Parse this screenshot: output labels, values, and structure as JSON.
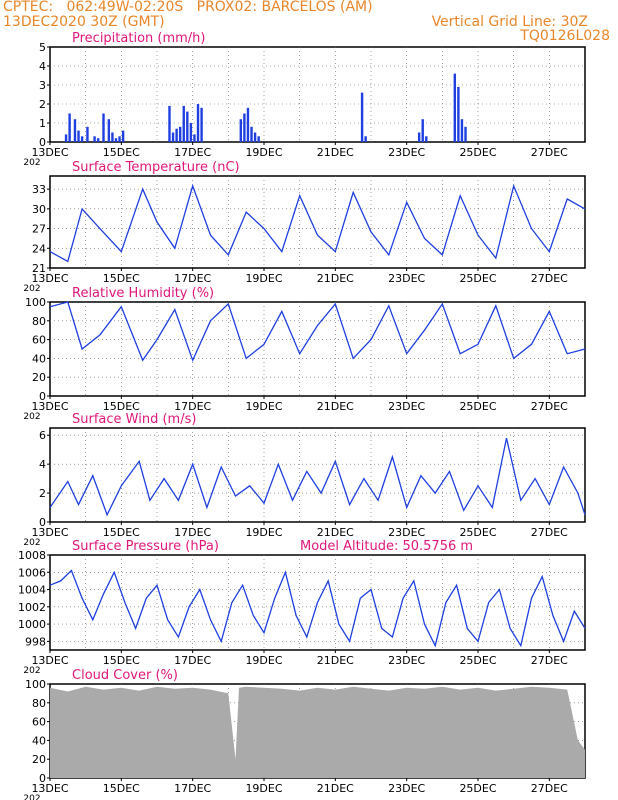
{
  "header": {
    "line1": "CPTEC:   062:49W-02:20S   PROX02: BARCELOS (AM)",
    "line2_left": "13DEC2020 30Z (GMT)",
    "line2_right": "Vertical Grid Line: 30Z",
    "line3_right": "TQ0126L028"
  },
  "colors": {
    "header": "#e8862a",
    "title": "#e0177a",
    "line": "#1f3fe0",
    "cloud": "#aaaaaa"
  },
  "x_axis": {
    "ticks": [
      "13DEC",
      "15DEC",
      "17DEC",
      "19DEC",
      "21DEC",
      "23DEC",
      "25DEC",
      "27DEC"
    ],
    "corner": "202"
  },
  "chart_data": [
    {
      "type": "bar",
      "title": "Precipitation (mm/h)",
      "ylim": [
        0,
        5
      ],
      "yticks": [
        0,
        1,
        2,
        3,
        4,
        5
      ],
      "x": [
        0.45,
        0.55,
        0.7,
        0.8,
        0.9,
        1.05,
        1.25,
        1.35,
        1.5,
        1.65,
        1.75,
        1.85,
        1.95,
        2.05,
        3.35,
        3.45,
        3.55,
        3.65,
        3.75,
        3.85,
        3.95,
        4.05,
        4.15,
        4.25,
        5.35,
        5.45,
        5.55,
        5.65,
        5.75,
        5.85,
        8.75,
        8.85,
        10.35,
        10.45,
        10.55,
        11.35,
        11.45,
        11.55,
        11.65
      ],
      "values": [
        0.4,
        1.5,
        1.2,
        0.6,
        0.3,
        0.8,
        0.3,
        0.2,
        1.5,
        1.2,
        0.5,
        0.2,
        0.3,
        0.6,
        1.9,
        0.5,
        0.7,
        0.8,
        1.9,
        1.6,
        1.0,
        0.4,
        2.0,
        1.8,
        1.2,
        1.5,
        1.8,
        0.8,
        0.5,
        0.3,
        2.6,
        0.3,
        0.5,
        1.2,
        0.3,
        3.6,
        2.9,
        1.2,
        0.8
      ]
    },
    {
      "type": "line",
      "title": "Surface Temperature (nC)",
      "ylim": [
        21,
        35
      ],
      "yticks": [
        21,
        24,
        27,
        30,
        33
      ],
      "x": [
        0,
        0.5,
        0.9,
        1.4,
        2.0,
        2.6,
        3.0,
        3.5,
        4.0,
        4.5,
        5.0,
        5.5,
        6.0,
        6.5,
        7.0,
        7.5,
        8.0,
        8.5,
        9.0,
        9.5,
        10.0,
        10.5,
        11.0,
        11.5,
        12.0,
        12.5,
        13.0,
        13.5,
        14.0,
        14.5,
        15.0
      ],
      "values": [
        23.5,
        22.0,
        30.0,
        27.0,
        23.5,
        33.0,
        28.0,
        24.0,
        33.5,
        26.0,
        23.0,
        29.5,
        27.0,
        23.5,
        32.0,
        26.0,
        23.5,
        32.5,
        26.5,
        23.0,
        31.0,
        25.5,
        23.0,
        32.0,
        26.0,
        22.5,
        33.5,
        27.0,
        23.5,
        31.5,
        30.0
      ]
    },
    {
      "type": "line",
      "title": "Relative Humidity (%)",
      "ylim": [
        0,
        100
      ],
      "yticks": [
        0,
        20,
        40,
        60,
        80,
        100
      ],
      "x": [
        0,
        0.5,
        0.9,
        1.4,
        2.0,
        2.6,
        3.0,
        3.5,
        4.0,
        4.5,
        5.0,
        5.5,
        6.0,
        6.5,
        7.0,
        7.5,
        8.0,
        8.5,
        9.0,
        9.5,
        10.0,
        10.5,
        11.0,
        11.5,
        12.0,
        12.5,
        13.0,
        13.5,
        14.0,
        14.5,
        15.0
      ],
      "values": [
        95,
        100,
        50,
        65,
        95,
        38,
        60,
        92,
        38,
        80,
        98,
        40,
        55,
        90,
        45,
        75,
        98,
        40,
        60,
        96,
        45,
        70,
        98,
        45,
        55,
        96,
        40,
        55,
        90,
        45,
        50
      ]
    },
    {
      "type": "line",
      "title": "Surface Wind (m/s)",
      "ylim": [
        0,
        6.5
      ],
      "yticks": [
        0,
        2,
        4,
        6
      ],
      "x": [
        0,
        0.5,
        0.8,
        1.2,
        1.6,
        2.0,
        2.5,
        2.8,
        3.2,
        3.6,
        4.0,
        4.4,
        4.8,
        5.2,
        5.6,
        6.0,
        6.4,
        6.8,
        7.2,
        7.6,
        8.0,
        8.4,
        8.8,
        9.2,
        9.6,
        10.0,
        10.4,
        10.8,
        11.2,
        11.6,
        12.0,
        12.4,
        12.8,
        13.2,
        13.6,
        14.0,
        14.4,
        14.8,
        15.0
      ],
      "values": [
        1.0,
        2.8,
        1.2,
        3.2,
        0.5,
        2.5,
        4.2,
        1.5,
        3.0,
        1.5,
        4.0,
        1.0,
        3.8,
        1.8,
        2.5,
        1.3,
        4.0,
        1.5,
        3.5,
        2.0,
        4.2,
        1.2,
        3.0,
        1.5,
        4.5,
        1.0,
        3.2,
        2.0,
        3.5,
        0.8,
        2.5,
        1.0,
        5.8,
        1.5,
        3.0,
        1.2,
        3.8,
        2.0,
        0.5
      ]
    },
    {
      "type": "line",
      "title": "Surface Pressure (hPa)",
      "annotation": "Model Altitude: 50.5756 m",
      "ylim": [
        997,
        1008
      ],
      "yticks": [
        998,
        1000,
        1002,
        1004,
        1006,
        1008
      ],
      "x": [
        0,
        0.3,
        0.6,
        0.9,
        1.2,
        1.5,
        1.8,
        2.1,
        2.4,
        2.7,
        3.0,
        3.3,
        3.6,
        3.9,
        4.2,
        4.5,
        4.8,
        5.1,
        5.4,
        5.7,
        6.0,
        6.3,
        6.6,
        6.9,
        7.2,
        7.5,
        7.8,
        8.1,
        8.4,
        8.7,
        9.0,
        9.3,
        9.6,
        9.9,
        10.2,
        10.5,
        10.8,
        11.1,
        11.4,
        11.7,
        12.0,
        12.3,
        12.6,
        12.9,
        13.2,
        13.5,
        13.8,
        14.1,
        14.4,
        14.7,
        15.0
      ],
      "values": [
        1004.5,
        1005.0,
        1006.2,
        1003.0,
        1000.5,
        1003.5,
        1006.0,
        1002.5,
        999.5,
        1003.0,
        1004.5,
        1000.5,
        998.5,
        1002.0,
        1004.0,
        1000.5,
        998.0,
        1002.5,
        1004.5,
        1001.0,
        999.0,
        1003.0,
        1006.0,
        1001.0,
        998.5,
        1002.5,
        1005.0,
        1000.0,
        998.0,
        1003.0,
        1004.0,
        999.5,
        998.5,
        1003.0,
        1005.0,
        1000.0,
        997.5,
        1002.5,
        1004.5,
        999.5,
        998.0,
        1002.5,
        1004.0,
        999.5,
        997.5,
        1003.0,
        1005.5,
        1001.0,
        998.0,
        1001.5,
        999.5
      ]
    },
    {
      "type": "area",
      "title": "Cloud Cover (%)",
      "ylim": [
        0,
        100
      ],
      "yticks": [
        0,
        20,
        40,
        60,
        80,
        100
      ],
      "x": [
        0,
        0.5,
        1.0,
        1.5,
        2.0,
        2.5,
        3.0,
        3.5,
        4.0,
        4.5,
        5.0,
        5.2,
        5.3,
        5.5,
        6.0,
        6.5,
        7.0,
        7.5,
        8.0,
        8.5,
        9.0,
        9.5,
        10.0,
        10.5,
        11.0,
        11.5,
        12.0,
        12.5,
        13.0,
        13.5,
        14.0,
        14.5,
        14.8,
        15.0
      ],
      "values": [
        96,
        92,
        97,
        94,
        96,
        93,
        97,
        95,
        96,
        94,
        90,
        20,
        96,
        97,
        96,
        95,
        93,
        96,
        94,
        97,
        95,
        93,
        96,
        95,
        97,
        94,
        96,
        93,
        95,
        97,
        96,
        94,
        40,
        30
      ]
    }
  ]
}
